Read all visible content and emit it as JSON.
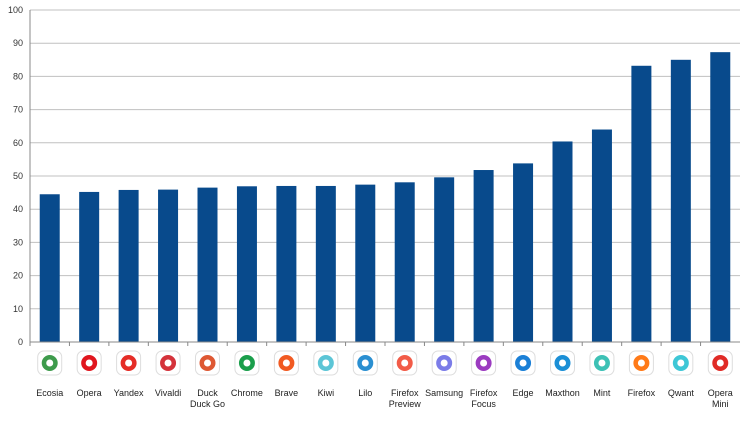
{
  "chart_data": {
    "type": "bar",
    "categories": [
      {
        "label": [
          "Ecosia"
        ],
        "icon": "ecosia-icon"
      },
      {
        "label": [
          "Opera"
        ],
        "icon": "opera-icon"
      },
      {
        "label": [
          "Yandex"
        ],
        "icon": "yandex-icon"
      },
      {
        "label": [
          "Vivaldi"
        ],
        "icon": "vivaldi-icon"
      },
      {
        "label": [
          "Duck",
          "Duck Go"
        ],
        "icon": "duckduckgo-icon"
      },
      {
        "label": [
          "Chrome"
        ],
        "icon": "chrome-icon"
      },
      {
        "label": [
          "Brave"
        ],
        "icon": "brave-icon"
      },
      {
        "label": [
          "Kiwi"
        ],
        "icon": "kiwi-icon"
      },
      {
        "label": [
          "Lilo"
        ],
        "icon": "lilo-icon"
      },
      {
        "label": [
          "Firefox",
          "Preview"
        ],
        "icon": "firefox-preview-icon"
      },
      {
        "label": [
          "Samsung"
        ],
        "icon": "samsung-internet-icon"
      },
      {
        "label": [
          "Firefox",
          "Focus"
        ],
        "icon": "firefox-focus-icon"
      },
      {
        "label": [
          "Edge"
        ],
        "icon": "edge-icon"
      },
      {
        "label": [
          "Maxthon"
        ],
        "icon": "maxthon-icon"
      },
      {
        "label": [
          "Mint"
        ],
        "icon": "mint-icon"
      },
      {
        "label": [
          "Firefox"
        ],
        "icon": "firefox-icon"
      },
      {
        "label": [
          "Qwant"
        ],
        "icon": "qwant-icon"
      },
      {
        "label": [
          "Opera",
          "Mini"
        ],
        "icon": "opera-mini-icon"
      }
    ],
    "values": [
      44.5,
      45.2,
      45.8,
      45.9,
      46.5,
      46.9,
      47.0,
      47.0,
      47.4,
      48.1,
      49.6,
      51.8,
      53.8,
      60.4,
      64.0,
      83.2,
      85.0,
      87.3
    ],
    "ylim": [
      0,
      100
    ],
    "yticks": [
      0,
      10,
      20,
      30,
      40,
      50,
      60,
      70,
      80,
      90,
      100
    ],
    "grid": true,
    "colors": {
      "bar": "#084a8c",
      "grid": "#c0c0c0",
      "axis": "#888888"
    },
    "icon_colors": [
      "#3e9b4c",
      "#e0161e",
      "#e52d27",
      "#d4333b",
      "#de5833",
      "#1a9e4b",
      "#f15a22",
      "#5cc5d6",
      "#2a8fd1",
      "#f25b47",
      "#7b7ce8",
      "#9b3bc0",
      "#1a7fd6",
      "#1b8fd6",
      "#3dc1b5",
      "#ff7a18",
      "#3ec7d6",
      "#e02b26"
    ]
  }
}
